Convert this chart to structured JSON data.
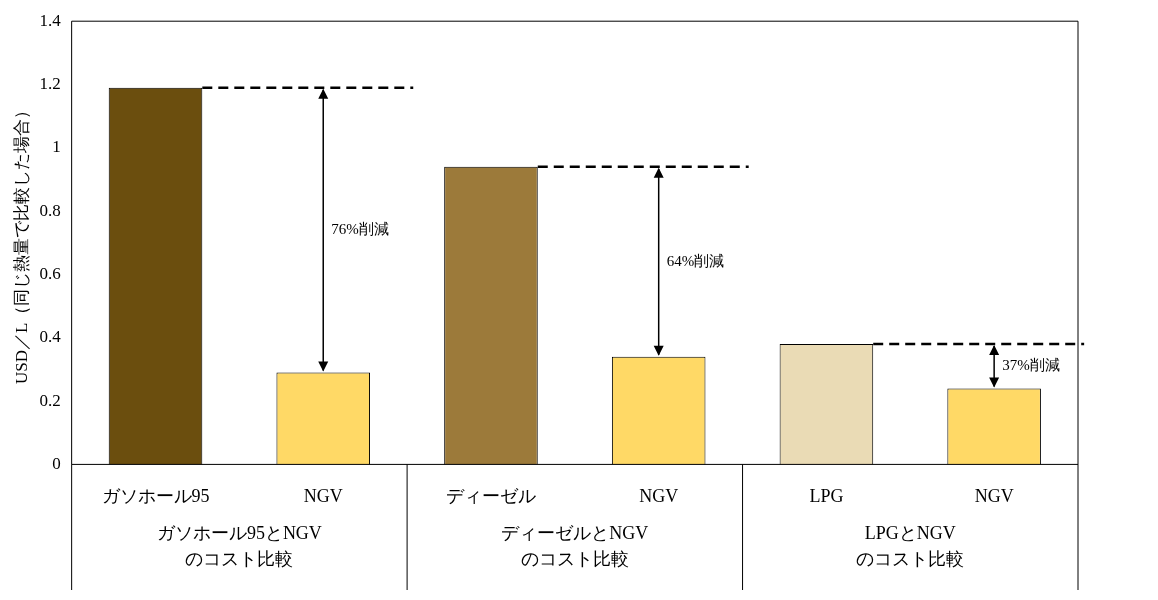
{
  "chart_data": {
    "type": "bar",
    "ylabel": "USD／L（同じ熱量で比較した場合）",
    "categories": [
      "ガソホール95",
      "NGV",
      "ディーゼル",
      "NGV",
      "LPG",
      "NGV"
    ],
    "values": [
      1.19,
      0.29,
      0.94,
      0.34,
      0.38,
      0.24
    ],
    "colors": [
      "#6b4e0e",
      "#ffd966",
      "#9c7a3a",
      "#ffd966",
      "#eadbb5",
      "#ffd966"
    ],
    "ylim": [
      0,
      1.4
    ],
    "yticks": [
      0,
      0.2,
      0.4,
      0.6,
      0.8,
      1,
      1.2,
      1.4
    ],
    "grid": false,
    "legend": false,
    "ref_lines": [
      {
        "axis": "y",
        "value": 1.19,
        "color": "#000000",
        "line_style": "dashed"
      },
      {
        "axis": "y",
        "value": 0.94,
        "color": "#000000",
        "line_style": "dashed"
      },
      {
        "axis": "y",
        "value": 0.38,
        "color": "#000000",
        "line_style": "dashed"
      }
    ],
    "annotations": [
      "76%削減",
      "64%削減",
      "37%削減",
      "ガソホール95とNGV\nのコスト比較",
      "ディーゼルとNGV\nのコスト比較",
      "LPGとNGV\nのコスト比較"
    ]
  }
}
